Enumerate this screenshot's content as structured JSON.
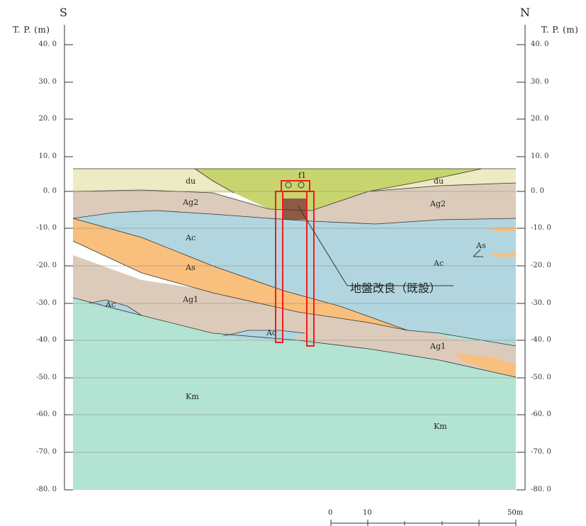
{
  "directions": {
    "left": "S",
    "right": "N"
  },
  "axis": {
    "unit_label": "T. P. (m)",
    "ticks": [
      "40. 0",
      "30. 0",
      "20. 0",
      "10. 0",
      "0. 0",
      "-10. 0",
      "-20. 0",
      "-30. 0",
      "-40. 0",
      "-50. 0",
      "-60. 0",
      "-70. 0",
      "-80. 0"
    ]
  },
  "layers": {
    "du": "du",
    "Ag2": "Ag2",
    "Ac": "Ac",
    "As": "As",
    "Ag1": "Ag1",
    "Km": "Km",
    "f1": "f1"
  },
  "callout": "地盤改良（既設）",
  "scale": {
    "ticks": [
      "0",
      "10",
      "50m"
    ]
  },
  "colors": {
    "fill_yellow": "#c8d46e",
    "du": "#ecebc3",
    "Ag": "#dccbba",
    "Ac": "#b1d6e0",
    "As": "#f9bf7c",
    "Km": "#b3e4d3",
    "improved": "#8f5a44",
    "structure": "#ee1c1c"
  }
}
